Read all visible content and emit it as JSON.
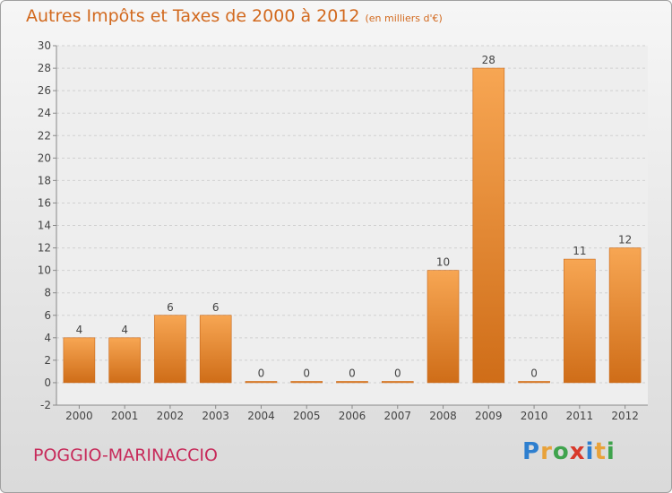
{
  "chart_data": {
    "type": "bar",
    "title": "Autres Impôts et Taxes de 2000 à 2012",
    "subtitle": "(en milliers d'€)",
    "categories": [
      "2000",
      "2001",
      "2002",
      "2003",
      "2004",
      "2005",
      "2006",
      "2007",
      "2008",
      "2009",
      "2010",
      "2011",
      "2012"
    ],
    "values": [
      4,
      4,
      6,
      6,
      0,
      0,
      0,
      0,
      10,
      28,
      0,
      11,
      12
    ],
    "data_labels": [
      "4",
      "4",
      "6",
      "6",
      "0",
      "0",
      "0",
      "0",
      "10",
      "28",
      "0",
      "11",
      "12"
    ],
    "ylim": [
      -2,
      30
    ],
    "yticks": [
      "-2",
      "0",
      "2",
      "4",
      "6",
      "8",
      "10",
      "12",
      "14",
      "16",
      "18",
      "20",
      "22",
      "24",
      "26",
      "28",
      "30"
    ],
    "grid": true,
    "bar_color": "#f0a050"
  },
  "footer": {
    "commune": "POGGIO-MARINACCIO"
  },
  "brand": {
    "p": "P",
    "r": "r",
    "o": "o",
    "x": "x",
    "i": "i",
    "t": "t",
    "i2": "i"
  }
}
